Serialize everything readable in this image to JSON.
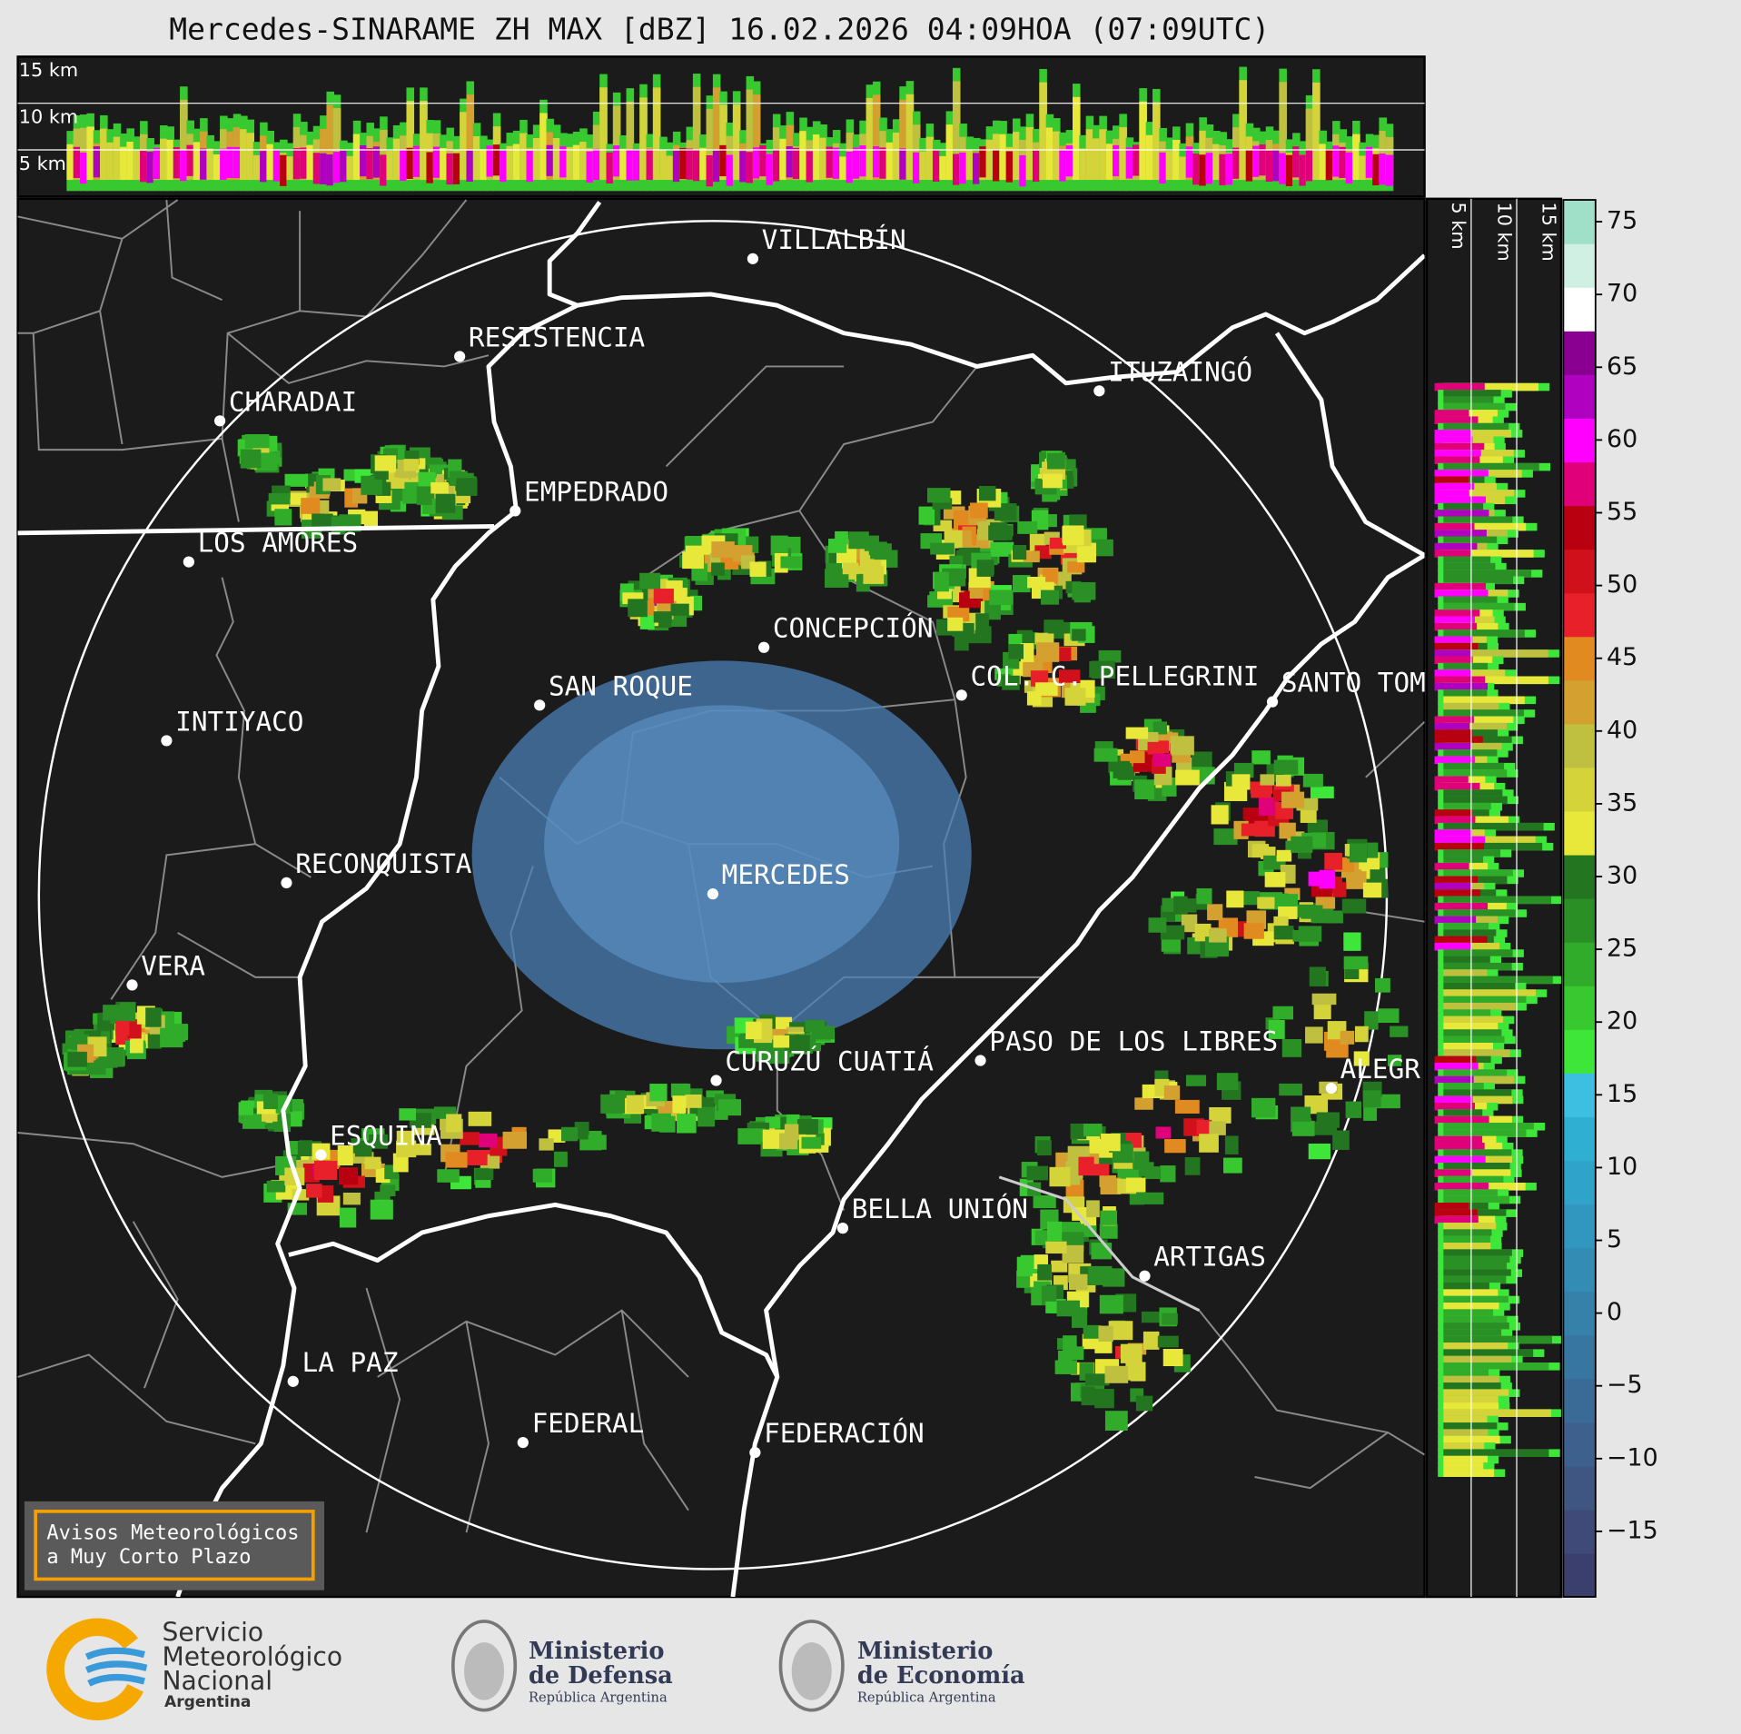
{
  "title": "Mercedes-SINARAME ZH MAX [dBZ] 16.02.2026 04:09HOA (07:09UTC)",
  "top_panel": {
    "height_labels": [
      "15 km",
      "10 km",
      "5 km"
    ]
  },
  "side_panel": {
    "height_labels": [
      "5 km",
      "10 km",
      "15 km"
    ]
  },
  "map": {
    "cities": [
      "VILLALBÍN",
      "RESISTENCIA",
      "CHARADAI",
      "EMPEDRADO",
      "LOS AMORES",
      "CONCEPCIÓN",
      "SAN ROQUE",
      "INTIYACO",
      "COL. C. PELLEGRINI",
      "SANTO TOM",
      "ITUZAINGÓ",
      "RECONQUISTA",
      "MERCEDES",
      "VERA",
      "PASO DE LOS LIBRES",
      "CURUZÚ CUATIÁ",
      "ALEGR",
      "ESQUINA",
      "BELLA UNIÓN",
      "ARTIGAS",
      "LA PAZ",
      "FEDERAL",
      "FEDERACIÓN"
    ]
  },
  "colorbar": {
    "lim": [
      -19.5,
      76.5
    ],
    "ticks": [
      {
        "value": -15,
        "label": "−15"
      },
      {
        "value": -10,
        "label": "−10"
      },
      {
        "value": -5,
        "label": "−5"
      },
      0,
      5,
      10,
      15,
      20,
      25,
      30,
      35,
      40,
      45,
      50,
      55,
      60,
      65,
      70,
      75
    ],
    "colors": [
      "#3b3f6e",
      "#3f4a78",
      "#3f5582",
      "#3d608c",
      "#3a6b96",
      "#3776a0",
      "#3581aa",
      "#338cb4",
      "#3297be",
      "#30a3c8",
      "#2fb0d2",
      "#3cbfe0",
      "#3ee63a",
      "#38c931",
      "#30ab2a",
      "#2a8f25",
      "#237520",
      "#e8e83a",
      "#d4d43a",
      "#c0c040",
      "#d4a030",
      "#e08a20",
      "#e8202a",
      "#d0101a",
      "#b80010",
      "#e0007a",
      "#ff00ff",
      "#b000c0",
      "#8a0090",
      "#ffffff",
      "#d0f0e4",
      "#a0e0c8"
    ]
  },
  "warning_box": {
    "lines": [
      "Avisos Meteorológicos",
      "a Muy Corto Plazo"
    ]
  },
  "footer": {
    "smn": {
      "lines": [
        "Servicio",
        "Meteorológico",
        "Nacional"
      ],
      "country": "Argentina"
    },
    "defensa": {
      "lines": [
        "Ministerio",
        "de Defensa"
      ],
      "country": "República Argentina"
    },
    "economia": {
      "lines": [
        "Ministerio",
        "de Economía"
      ],
      "country": "República Argentina"
    }
  }
}
